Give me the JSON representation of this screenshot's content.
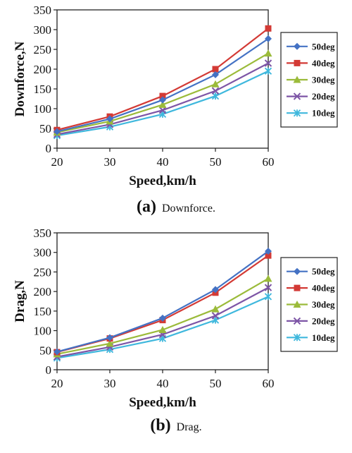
{
  "colors": {
    "s50": "#4472c4",
    "s40": "#d33a35",
    "s30": "#9bbb3a",
    "s20": "#7d55a6",
    "s10": "#3fb8dd"
  },
  "chart_data": [
    {
      "type": "line",
      "caption_letter": "(a)",
      "caption_text": "Downforce.",
      "xlabel": "Speed,km/h",
      "ylabel": "Downforce,N",
      "x": [
        20,
        30,
        40,
        50,
        60
      ],
      "xlim": [
        20,
        60
      ],
      "ylim": [
        0,
        350
      ],
      "xticks": [
        20,
        30,
        40,
        50,
        60
      ],
      "yticks": [
        0,
        50,
        100,
        150,
        200,
        250,
        300,
        350
      ],
      "grid": false,
      "legend": "right",
      "series": [
        {
          "name": "50deg",
          "values": [
            42,
            74,
            122,
            186,
            277
          ],
          "marker": "diamond",
          "color": "#4472c4"
        },
        {
          "name": "40deg",
          "values": [
            46,
            80,
            132,
            200,
            303
          ],
          "marker": "square",
          "color": "#d33a35"
        },
        {
          "name": "30deg",
          "values": [
            40,
            68,
            110,
            162,
            240
          ],
          "marker": "triangle",
          "color": "#9bbb3a"
        },
        {
          "name": "20deg",
          "values": [
            35,
            60,
            96,
            145,
            215
          ],
          "marker": "x",
          "color": "#7d55a6"
        },
        {
          "name": "10deg",
          "values": [
            32,
            54,
            86,
            132,
            195
          ],
          "marker": "star",
          "color": "#3fb8dd"
        }
      ]
    },
    {
      "type": "line",
      "caption_letter": "(b)",
      "caption_text": "Drag.",
      "xlabel": "Speed,km/h",
      "ylabel": "Drag,N",
      "x": [
        20,
        30,
        40,
        50,
        60
      ],
      "xlim": [
        20,
        60
      ],
      "ylim": [
        0,
        350
      ],
      "xticks": [
        20,
        30,
        40,
        50,
        60
      ],
      "yticks": [
        0,
        50,
        100,
        150,
        200,
        250,
        300,
        350
      ],
      "grid": false,
      "legend": "right",
      "series": [
        {
          "name": "50deg",
          "values": [
            46,
            82,
            132,
            205,
            303
          ],
          "marker": "diamond",
          "color": "#4472c4"
        },
        {
          "name": "40deg",
          "values": [
            45,
            80,
            127,
            197,
            292
          ],
          "marker": "square",
          "color": "#d33a35"
        },
        {
          "name": "30deg",
          "values": [
            40,
            67,
            102,
            155,
            233
          ],
          "marker": "triangle",
          "color": "#9bbb3a"
        },
        {
          "name": "20deg",
          "values": [
            33,
            58,
            90,
            138,
            210
          ],
          "marker": "x",
          "color": "#7d55a6"
        },
        {
          "name": "10deg",
          "values": [
            30,
            52,
            80,
            127,
            187
          ],
          "marker": "star",
          "color": "#3fb8dd"
        }
      ]
    }
  ]
}
